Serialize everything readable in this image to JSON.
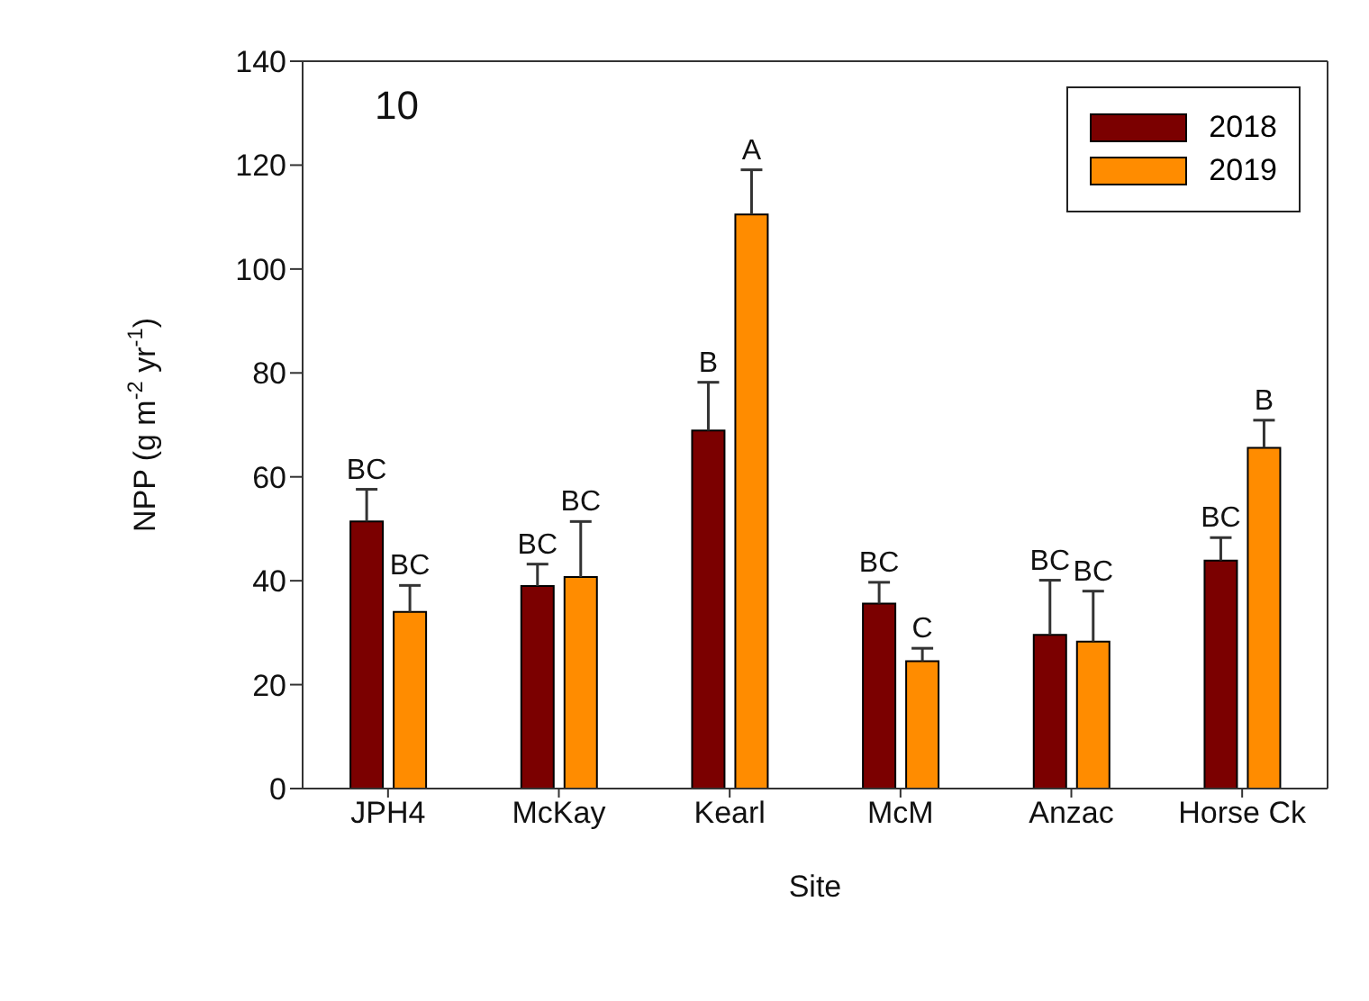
{
  "chart_data": {
    "type": "bar",
    "xlabel": "Site",
    "ylabel": "NPP (g m$^{-2}$ yr$^{-1}$)",
    "annotations": [
      "10"
    ],
    "categories": [
      "JPH4",
      "McKay",
      "Kearl",
      "McM",
      "Anzac",
      "Horse Ck"
    ],
    "series": [
      {
        "name": "2018",
        "color": "#7b0000",
        "values": [
          51.4,
          39.0,
          68.9,
          35.6,
          29.6,
          43.9
        ],
        "errors": [
          [
            51.4,
            57.6
          ],
          [
            39.0,
            43.2
          ],
          [
            68.9,
            78.2
          ],
          [
            35.6,
            39.7
          ],
          [
            29.6,
            40.1
          ],
          [
            43.9,
            48.3
          ]
        ],
        "value_labels": [
          "BC",
          "BC",
          "B",
          "BC",
          "BC",
          "BC"
        ]
      },
      {
        "name": "2019",
        "color": "#ff8c00",
        "values": [
          34.0,
          40.7,
          110.5,
          24.5,
          28.3,
          65.6
        ],
        "errors": [
          [
            34.0,
            39.1
          ],
          [
            40.7,
            51.4
          ],
          [
            110.5,
            119.1
          ],
          [
            24.5,
            27.0
          ],
          [
            28.3,
            38.0
          ],
          [
            65.6,
            70.9
          ]
        ],
        "value_labels": [
          "BC",
          "BC",
          "A",
          "C",
          "BC",
          "B"
        ]
      }
    ],
    "ylim": [
      0,
      140
    ],
    "yticks": [
      0,
      20,
      40,
      60,
      80,
      100,
      120,
      140
    ],
    "grid": false,
    "legend": "top right"
  }
}
